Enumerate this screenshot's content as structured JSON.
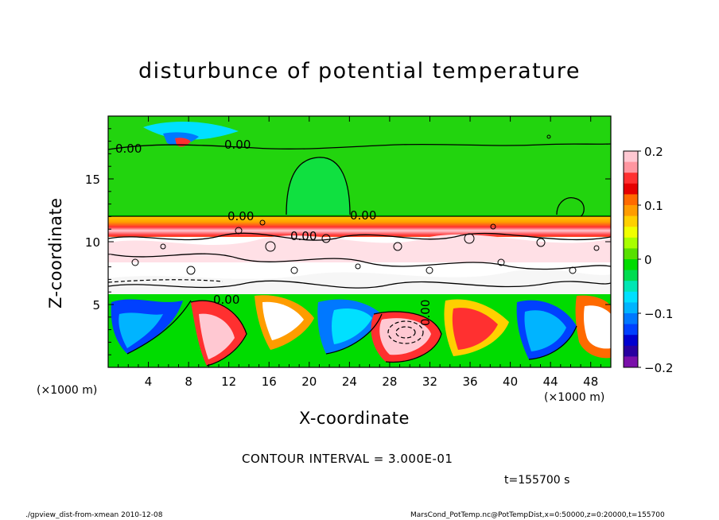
{
  "chart_data": {
    "type": "heatmap",
    "title": "disturbunce of potential temperature",
    "xlabel": "X-coordinate",
    "ylabel": "Z-coordinate",
    "x_unit_label": "(×1000 m)",
    "x_ticks": [
      "4",
      "8",
      "12",
      "16",
      "20",
      "24",
      "28",
      "32",
      "36",
      "40",
      "44",
      "48"
    ],
    "x_tick_values": [
      4,
      8,
      12,
      16,
      20,
      24,
      28,
      32,
      36,
      40,
      44,
      48
    ],
    "y_ticks": [
      "5",
      "10",
      "15"
    ],
    "y_tick_values": [
      5,
      10,
      15
    ],
    "xlim": [
      0,
      50
    ],
    "ylim": [
      0,
      20
    ],
    "colorbar": {
      "ticks": [
        "0.2",
        "0.1",
        "0",
        "−0.1",
        "−0.2"
      ],
      "tick_values": [
        0.2,
        0.1,
        0,
        -0.1,
        -0.2
      ],
      "range": [
        -0.2,
        0.2
      ],
      "colors": [
        "#ffc8d2",
        "#ff96a0",
        "#ff3030",
        "#e60000",
        "#ff6a00",
        "#ff9c00",
        "#ffd000",
        "#f0ff00",
        "#a8ff00",
        "#58e000",
        "#00dc00",
        "#00dc50",
        "#00e6b4",
        "#00e0ff",
        "#00b4ff",
        "#0078ff",
        "#0040ff",
        "#0000d0",
        "#2800a0",
        "#7a10aa"
      ]
    },
    "contour_labels": [
      "0.00",
      "0.00",
      "0.00",
      "0.00",
      "0.00",
      "0.00",
      "0.00"
    ],
    "annotations": {
      "contour_interval": "CONTOUR INTERVAL = 3.000E-01",
      "time": "t=155700 s"
    }
  },
  "footer": {
    "left": "./gpview_dist-from-xmean   2010-12-08",
    "right": "MarsCond_PotTemp.nc@PotTempDist,x=0:50000,z=0:20000,t=155700"
  }
}
